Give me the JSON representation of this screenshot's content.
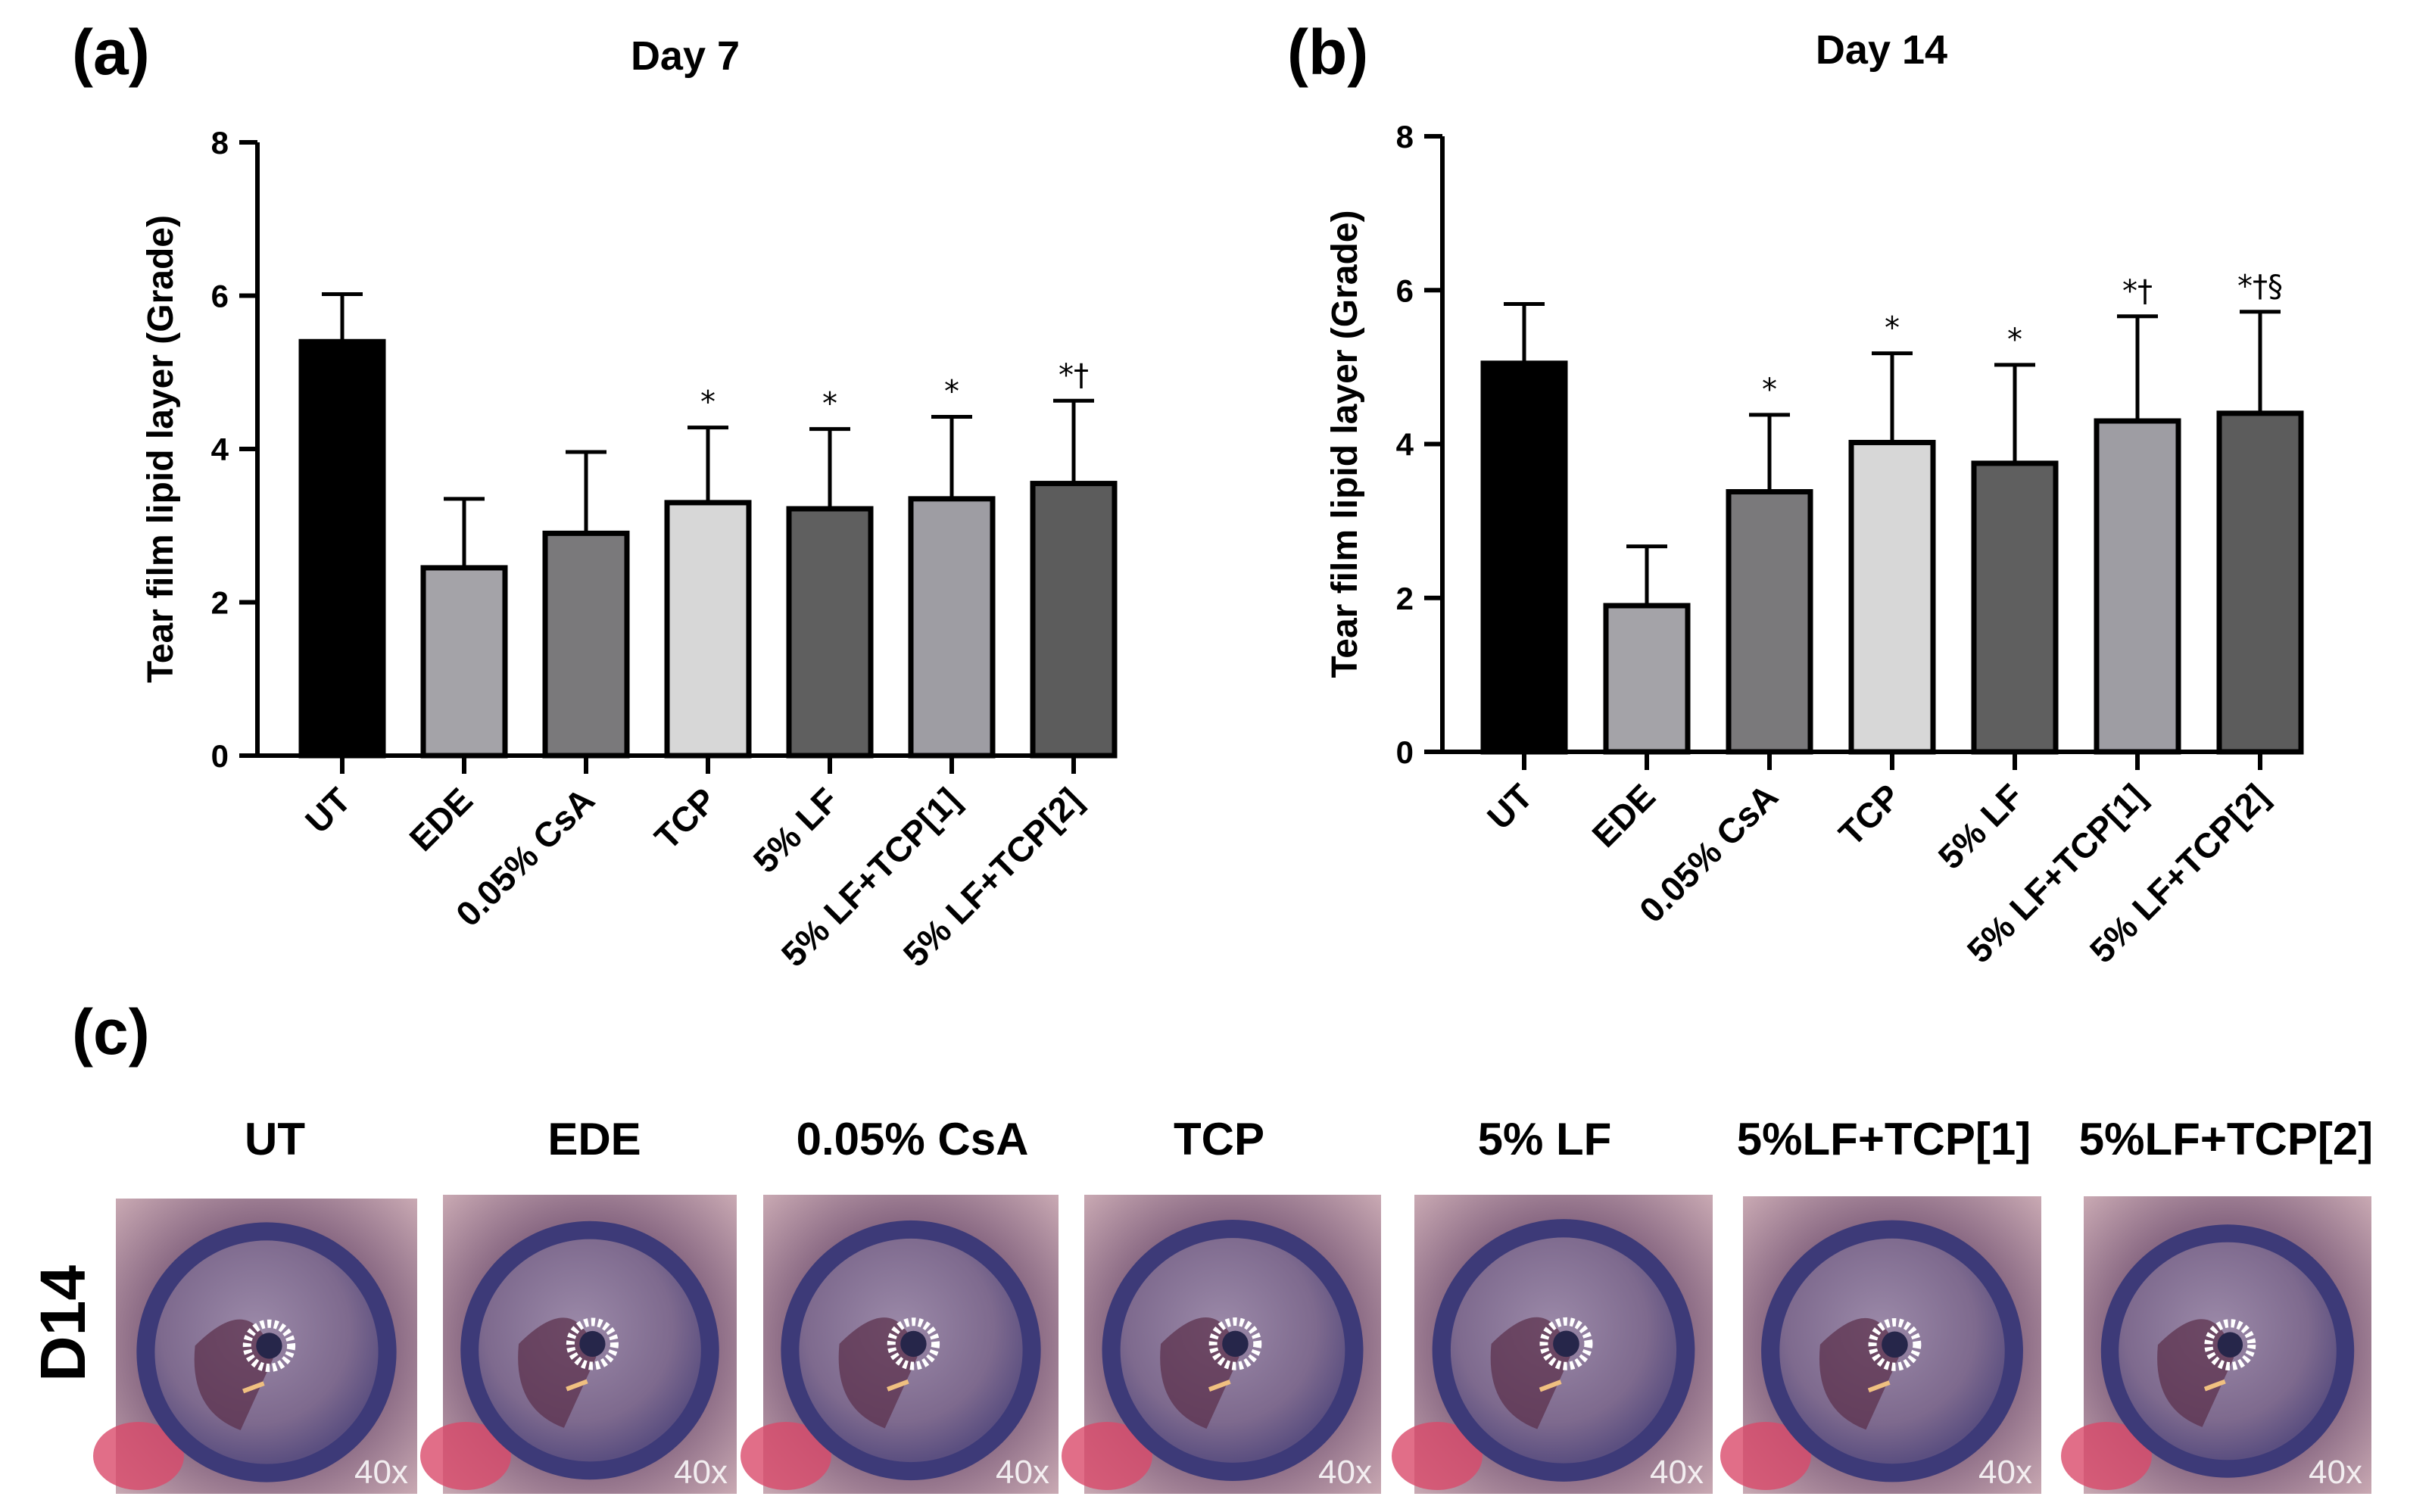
{
  "panel_labels": {
    "a": "(a)",
    "b": "(b)",
    "c": "(c)"
  },
  "chart_data": [
    {
      "type": "bar",
      "panel": "(a)",
      "title": "Day 7",
      "ylabel": "Tear film lipid layer  (Grade)",
      "xlabel": "",
      "ylim": [
        0,
        8
      ],
      "yticks": [
        "0",
        "2",
        "4",
        "6",
        "8"
      ],
      "categories": [
        "UT",
        "EDE",
        "0.05% CsA",
        "TCP",
        "5% LF",
        "5% LF+TCP[1]",
        "5% LF+TCP[2]"
      ],
      "values": [
        5.4,
        2.45,
        2.9,
        3.3,
        3.22,
        3.35,
        3.55
      ],
      "errors": [
        0.62,
        0.9,
        1.06,
        0.98,
        1.04,
        1.07,
        1.08
      ],
      "significance": [
        "",
        "",
        "",
        "*",
        "*",
        "*",
        "*†"
      ],
      "colors": [
        "#000000",
        "#a4a3a8",
        "#7a797b",
        "#d7d7d7",
        "#5f5f5f",
        "#9e9da3",
        "#5c5c5c"
      ]
    },
    {
      "type": "bar",
      "panel": "(b)",
      "title": "Day 14",
      "ylabel": "Tear film lipid layer  (Grade)",
      "xlabel": "",
      "ylim": [
        0,
        8
      ],
      "yticks": [
        "0",
        "2",
        "4",
        "6",
        "8"
      ],
      "categories": [
        "UT",
        "EDE",
        "0.05% CsA",
        "TCP",
        "5% LF",
        "5% LF+TCP[1]",
        "5% LF+TCP[2]"
      ],
      "values": [
        5.05,
        1.9,
        3.38,
        4.02,
        3.75,
        4.3,
        4.4
      ],
      "errors": [
        0.77,
        0.77,
        1.0,
        1.16,
        1.28,
        1.36,
        1.32
      ],
      "significance": [
        "",
        "",
        "*",
        "*",
        "*",
        "*†",
        "*†§"
      ],
      "colors": [
        "#000000",
        "#a4a3a8",
        "#7a797b",
        "#d7d7d7",
        "#5f5f5f",
        "#9e9da3",
        "#5c5c5c"
      ]
    }
  ],
  "photos": {
    "row_label": "D14",
    "magnification": "40x",
    "titles": [
      "UT",
      "EDE",
      "0.05% CsA",
      "TCP",
      "5% LF",
      "5%LF+TCP[1]",
      "5%LF+TCP[2]"
    ]
  }
}
